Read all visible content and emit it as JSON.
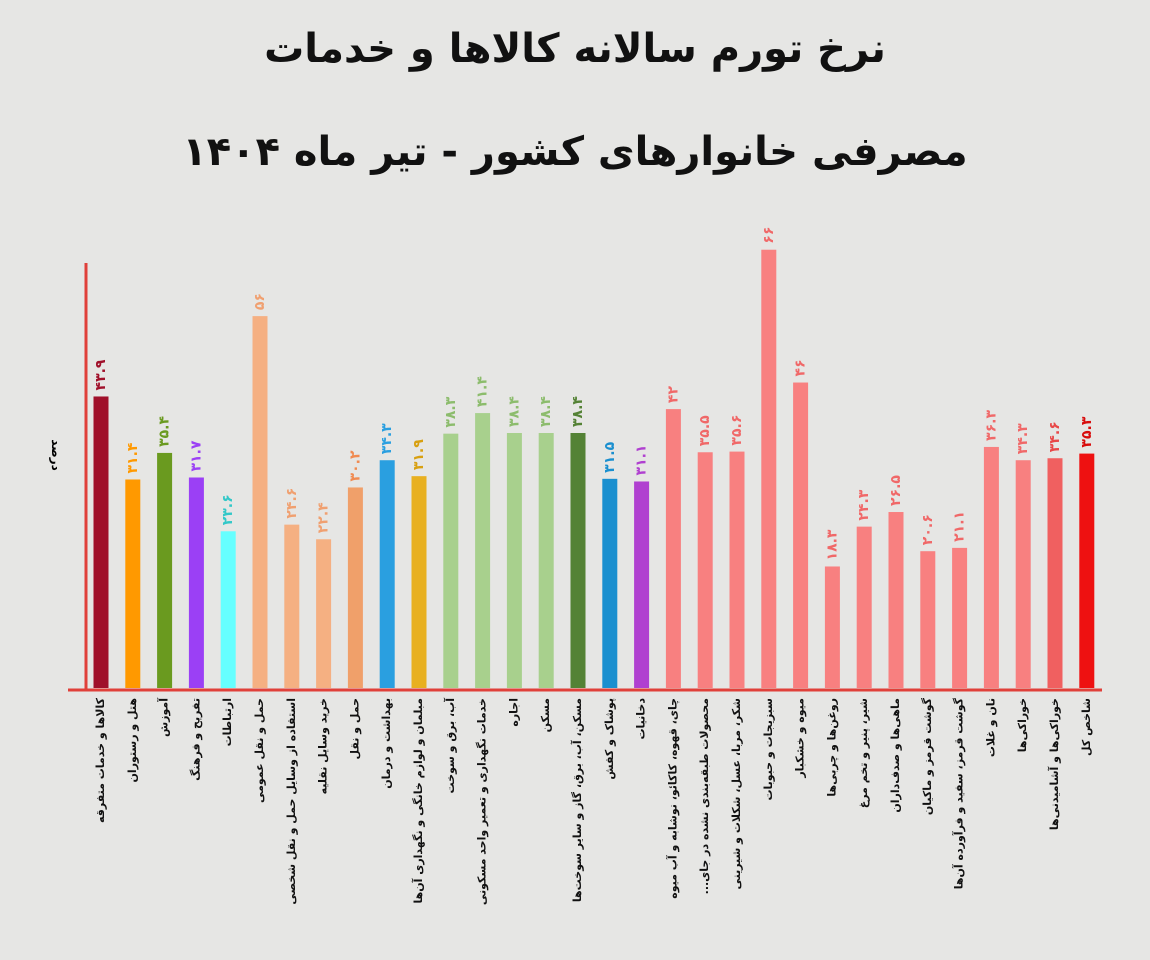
{
  "chart_data": {
    "type": "bar",
    "title": "نرخ تورم سالانه کالاها و خدمات",
    "subtitle": "مصرفی خانوارهای کشور - تیر ماه ۱۴۰۴",
    "y_label": "درصد",
    "categories": [
      "کالاها و خدمات متفرقه",
      "هتل و رستوران",
      "آموزش",
      "تفریح و فرهنگ",
      "ارتباطات",
      "حمل و نقل عمومی",
      "استفاده از وسایل حمل و نقل شخصی",
      "خرید وسایل نقلیه",
      "حمل و نقل",
      "بهداشت و درمان",
      "مبلمان و لوازم خانگی و نگهداری آن‌ها",
      "آب، برق و سوخت",
      "خدمات نگهداری و تعمیر واحد مسکونی",
      "اجاره",
      "مسکن",
      "مسکن، آب، برق، گاز و سایر سوخت‌ها",
      "پوشاک و کفش",
      "دخانیات",
      "چای، قهوه، کاکائو، نوشابه و آب میوه",
      "محصولات طبقه‌بندی نشده در جای...",
      "شکر، مربا، عسل، شکلات و شیرینی",
      "سبزیجات و حبوبات",
      "میوه و خشکبار",
      "روغن‌ها و چربی‌ها",
      "شیر، پنیر و تخم مرغ",
      "ماهی‌ها و صدف‌داران",
      "گوشت قرمز و ماکیان",
      "گوشت قرمز، سفید و فرآورده آن‌ها",
      "نان و غلات",
      "خوراکی‌ها",
      "خوراکی‌ها و آشامیدنی‌ها",
      "شاخص کل"
    ],
    "values": [
      43.9,
      31.4,
      35.4,
      31.7,
      23.6,
      56,
      24.6,
      22.4,
      30.2,
      34.3,
      31.9,
      38.3,
      41.4,
      38.4,
      38.4,
      38.4,
      31.5,
      31.1,
      42,
      35.5,
      35.6,
      66,
      46,
      18.3,
      24.3,
      26.5,
      20.6,
      21.1,
      36.3,
      34.3,
      34.6,
      35.3
    ],
    "value_labels": [
      "۴۳.۹",
      "۳۱.۴",
      "۳۵.۴",
      "۳۱.۷",
      "۲۳.۶",
      "۵۶",
      "۲۴.۶",
      "۲۲.۴",
      "۳۰.۲",
      "۳۴.۳",
      "۳۱.۹",
      "۳۸.۳",
      "۴۱.۴",
      "۳۸.۴",
      "۳۸.۴",
      "۳۸.۴",
      "۳۱.۵",
      "۳۱.۱",
      "۴۲",
      "۳۵.۵",
      "۳۵.۶",
      "۶۶",
      "۴۶",
      "۱۸.۳",
      "۲۴.۳",
      "۲۶.۵",
      "۲۰.۶",
      "۲۱.۱",
      "۳۶.۳",
      "۳۴.۳",
      "۳۴.۶",
      "۳۵.۳"
    ],
    "colors": [
      "#a0102a",
      "#ff9900",
      "#6a9a1f",
      "#9b40f5",
      "#66ffff",
      "#f5b082",
      "#f5b082",
      "#f5b082",
      "#f0a06a",
      "#2a9fe0",
      "#e8b020",
      "#a8d08d",
      "#a8d08d",
      "#a8d08d",
      "#a8d08d",
      "#548235",
      "#1a8fcf",
      "#b040d0",
      "#f88080",
      "#f88080",
      "#f88080",
      "#f88080",
      "#f88080",
      "#f88080",
      "#f88080",
      "#f88080",
      "#f88080",
      "#f88080",
      "#f88080",
      "#f88080",
      "#f06060",
      "#ee1111"
    ],
    "label_colors": [
      "#a0102a",
      "#ff9900",
      "#6a9a1f",
      "#9b40f5",
      "#33c8c8",
      "#f0a070",
      "#f0a070",
      "#f0a070",
      "#f08a50",
      "#2a9fe0",
      "#d8a010",
      "#8cbc6c",
      "#8cbc6c",
      "#8cbc6c",
      "#8cbc6c",
      "#548235",
      "#1a8fcf",
      "#b040d0",
      "#f06868",
      "#f06868",
      "#f06868",
      "#f06868",
      "#f06868",
      "#f06868",
      "#f06868",
      "#f06868",
      "#f06868",
      "#f06868",
      "#f06868",
      "#f06868",
      "#e84848",
      "#d80c0c"
    ],
    "axis_color": "#e0403a",
    "ylim": [
      0,
      64
    ]
  }
}
